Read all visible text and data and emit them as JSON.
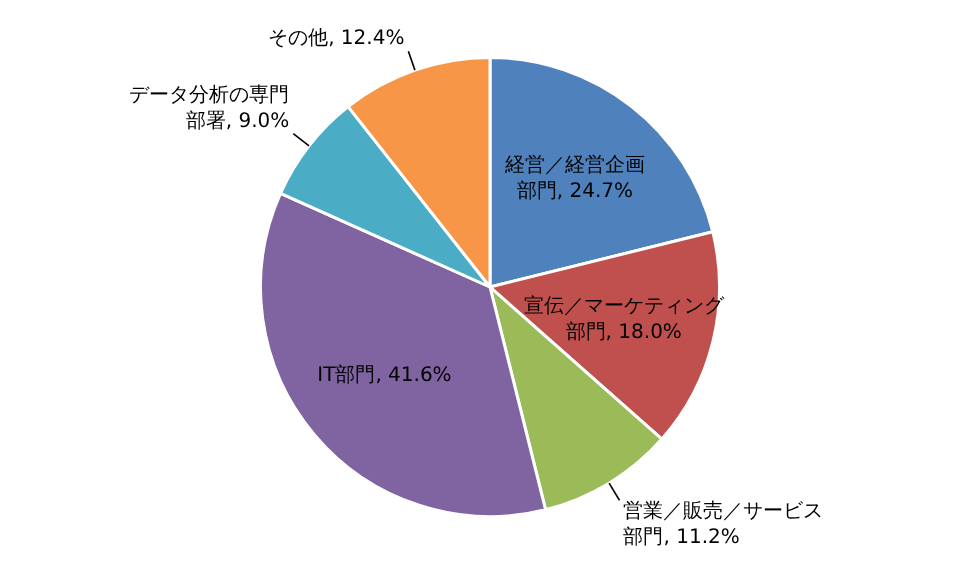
{
  "chart_data": {
    "type": "pie",
    "categories": [
      "経営／経営企画部門",
      "宣伝／マーケティング部門",
      "営業／販売／サービス部門",
      "IT部門",
      "データ分析の専門部署",
      "その他"
    ],
    "values": [
      24.7,
      18.0,
      11.2,
      41.6,
      9.0,
      12.4
    ],
    "value_labels": [
      "24.7%",
      "18.0%",
      "11.2%",
      "41.6%",
      "9.0%",
      "12.4%"
    ],
    "colors": [
      "#4f81bd",
      "#c0504d",
      "#9bbb59",
      "#8064a2",
      "#4bacc6",
      "#f79646"
    ],
    "legend": false
  }
}
